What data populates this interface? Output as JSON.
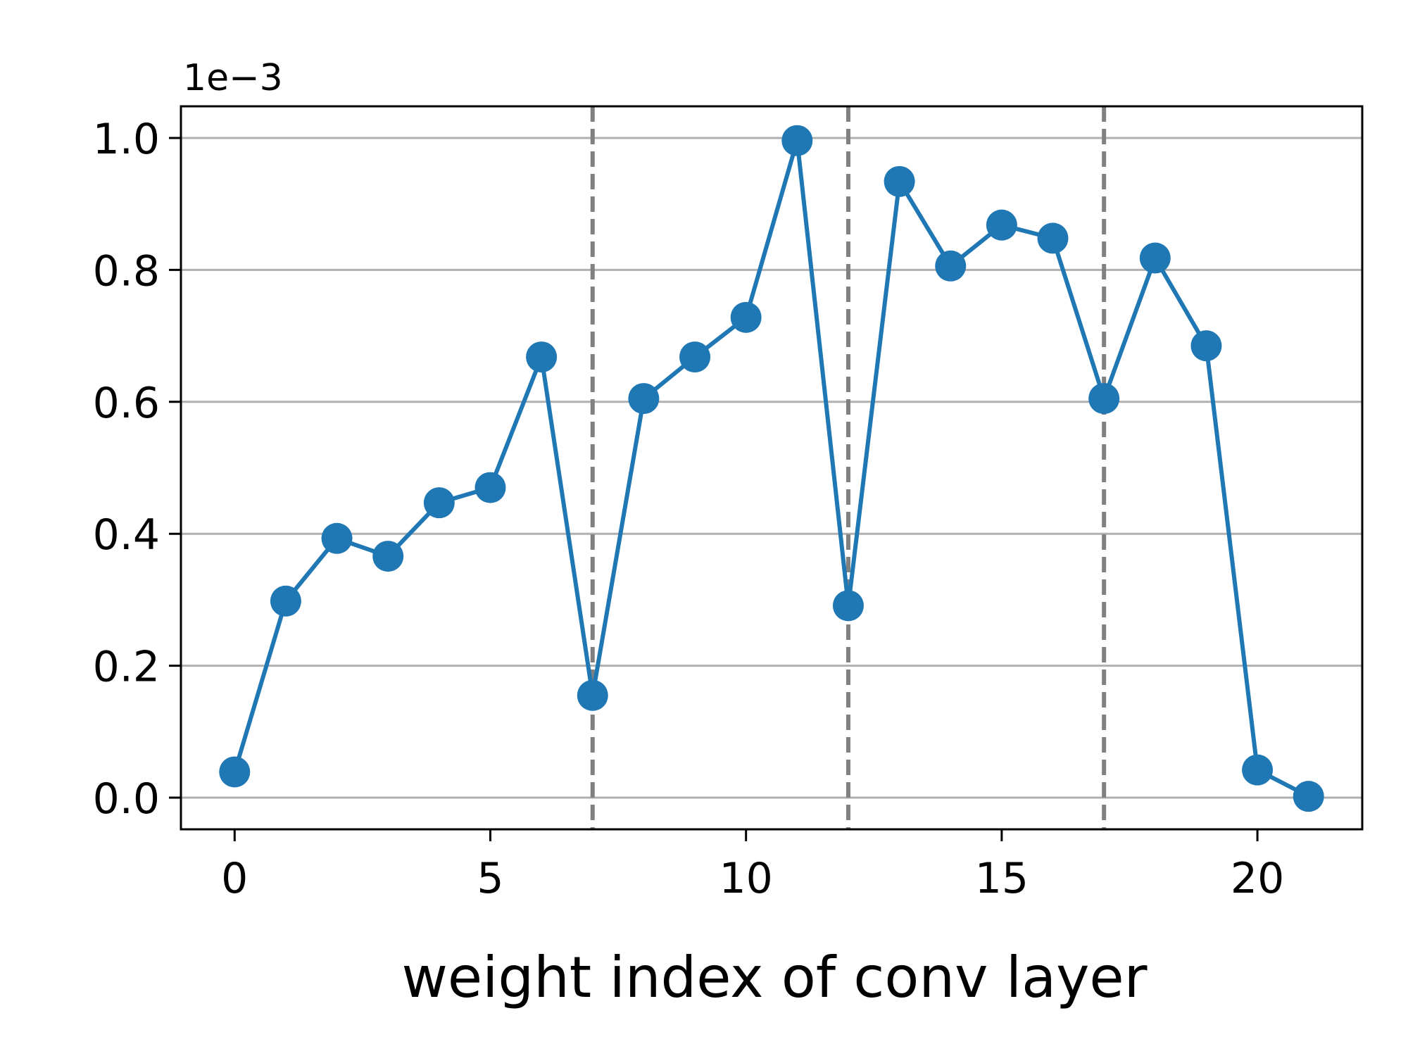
{
  "chart_data": {
    "type": "line",
    "title": "",
    "xlabel": "weight index of conv layer",
    "ylabel": "",
    "y_offset_label": "1e−3",
    "xlim": [
      -1.05,
      22.05
    ],
    "ylim": [
      -0.048,
      1.048
    ],
    "x_ticks": [
      0,
      5,
      10,
      15,
      20
    ],
    "x_tick_labels": [
      "0",
      "5",
      "10",
      "15",
      "20"
    ],
    "y_ticks": [
      0.0,
      0.2,
      0.4,
      0.6,
      0.8,
      1.0
    ],
    "y_tick_labels": [
      "0.0",
      "0.2",
      "0.4",
      "0.6",
      "0.8",
      "1.0"
    ],
    "grid": "horizontal",
    "vlines": [
      7,
      12,
      17
    ],
    "vline_color": "#808080",
    "grid_color": "#b0b0b0",
    "series": [
      {
        "color": "#1f77b4",
        "marker": "circle",
        "x": [
          0,
          1,
          2,
          3,
          4,
          5,
          6,
          7,
          8,
          9,
          10,
          11,
          12,
          13,
          14,
          15,
          16,
          17,
          18,
          19,
          20,
          21
        ],
        "y": [
          0.039,
          0.298,
          0.393,
          0.366,
          0.447,
          0.47,
          0.668,
          0.155,
          0.605,
          0.668,
          0.728,
          0.996,
          0.291,
          0.934,
          0.806,
          0.868,
          0.848,
          0.605,
          0.818,
          0.685,
          0.042,
          0.002
        ]
      }
    ]
  }
}
